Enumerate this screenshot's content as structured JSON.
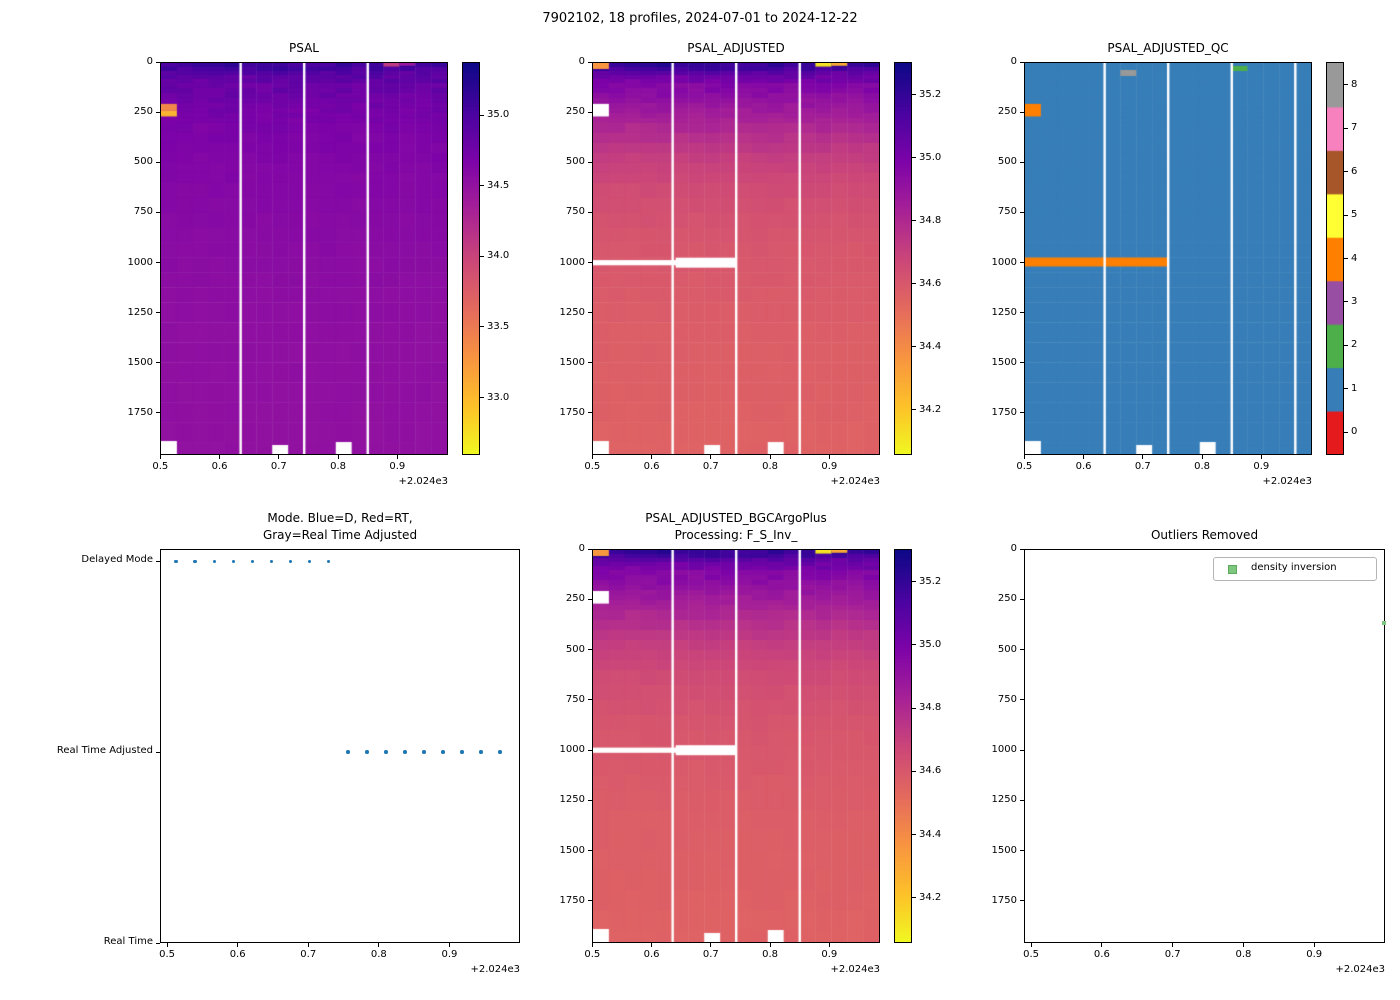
{
  "figure": {
    "suptitle": "7902102, 18 profiles, 2024-07-01 to 2024-12-22",
    "background": "#ffffff"
  },
  "colors": {
    "spine": "#000000",
    "text": "#000000",
    "qc_palette": [
      "#e41a1c",
      "#377eb8",
      "#4daf4a",
      "#984ea3",
      "#ff7f00",
      "#ffff33",
      "#a65628",
      "#f781bf",
      "#999999"
    ],
    "plasma_stops": [
      [
        0,
        "#0d0887"
      ],
      [
        0.13,
        "#4b03a1"
      ],
      [
        0.25,
        "#7d03a8"
      ],
      [
        0.38,
        "#a82296"
      ],
      [
        0.5,
        "#cb4679"
      ],
      [
        0.63,
        "#e56b5d"
      ],
      [
        0.75,
        "#f89441"
      ],
      [
        0.88,
        "#fdc328"
      ],
      [
        1,
        "#f0f921"
      ]
    ]
  },
  "profiles_x": [
    0.513,
    0.54,
    0.567,
    0.594,
    0.621,
    0.648,
    0.675,
    0.702,
    0.729,
    0.756,
    0.783,
    0.81,
    0.837,
    0.864,
    0.891,
    0.918,
    0.945,
    0.972
  ],
  "profile_halfwidth": 0.0135,
  "chart_data": [
    {
      "id": "psal",
      "type": "heatmap",
      "title": "PSAL",
      "xlim": [
        0.4995,
        0.9855
      ],
      "xticks": [
        0.5,
        0.6,
        0.7,
        0.8,
        0.9
      ],
      "x_offset_label": "+2.024e3",
      "depth_max": 1960,
      "yticks": [
        0,
        250,
        500,
        750,
        1000,
        1250,
        1500,
        1750
      ],
      "vmin": 32.6,
      "vmax": 35.37,
      "colorbar_ticks": [
        "33.0",
        "33.5",
        "34.0",
        "34.5",
        "35.0"
      ],
      "profile_depths": [
        0,
        25,
        60,
        120,
        250,
        400,
        600,
        900,
        1300,
        1960
      ],
      "profile_values": [
        35.12,
        35.02,
        34.9,
        34.8,
        34.72,
        34.66,
        34.62,
        34.58,
        34.54,
        34.52
      ],
      "anomalies": [
        {
          "profile": 0,
          "d0": 205,
          "d1": 240,
          "value": 33.4
        },
        {
          "profile": 0,
          "d0": 240,
          "d1": 268,
          "value": 33.05
        },
        {
          "profile": 14,
          "d0": 0,
          "d1": 18,
          "value": 34.1
        },
        {
          "profile": 15,
          "d0": 0,
          "d1": 14,
          "value": 34.45
        }
      ],
      "column_gaps_after": [
        4,
        8,
        12
      ],
      "missing_bottom": [
        {
          "profile": 0,
          "from": 1895
        },
        {
          "profile": 7,
          "from": 1915
        },
        {
          "profile": 11,
          "from": 1900
        }
      ],
      "masked_rows": []
    },
    {
      "id": "psal_adjusted",
      "type": "heatmap",
      "title": "PSAL_ADJUSTED",
      "xlim": [
        0.4995,
        0.9855
      ],
      "xticks": [
        0.5,
        0.6,
        0.7,
        0.8,
        0.9
      ],
      "x_offset_label": "+2.024e3",
      "depth_max": 1960,
      "yticks": [
        0,
        250,
        500,
        750,
        1000,
        1250,
        1500,
        1750
      ],
      "vmin": 34.06,
      "vmax": 35.3,
      "colorbar_ticks": [
        "34.2",
        "34.4",
        "34.6",
        "34.8",
        "35.0",
        "35.2"
      ],
      "profile_depths": [
        0,
        25,
        60,
        120,
        200,
        300,
        450,
        650,
        900,
        1300,
        1960
      ],
      "profile_values": [
        35.22,
        35.16,
        35.05,
        34.96,
        34.9,
        34.82,
        34.72,
        34.65,
        34.61,
        34.58,
        34.56
      ],
      "anomalies": [
        {
          "profile": 0,
          "d0": 0,
          "d1": 30,
          "value": 34.36
        },
        {
          "profile": 0,
          "d0": 205,
          "d1": 268,
          "value": null
        },
        {
          "profile": 14,
          "d0": 0,
          "d1": 18,
          "value": 34.12
        },
        {
          "profile": 15,
          "d0": 0,
          "d1": 14,
          "value": 34.3
        }
      ],
      "column_gaps_after": [
        4,
        8,
        12
      ],
      "missing_bottom": [
        {
          "profile": 0,
          "from": 1895
        },
        {
          "profile": 7,
          "from": 1915
        },
        {
          "profile": 11,
          "from": 1900
        }
      ],
      "masked_rows": [
        {
          "x0": 0.4995,
          "x1": 0.7425,
          "d0": 988,
          "d1": 1014
        },
        {
          "x0": 0.64,
          "x1": 0.7425,
          "d0": 976,
          "d1": 1026
        }
      ]
    },
    {
      "id": "psal_adjusted_qc",
      "type": "heatmap_discrete",
      "title": "PSAL_ADJUSTED_QC",
      "xlim": [
        0.4995,
        0.9855
      ],
      "xticks": [
        0.5,
        0.6,
        0.7,
        0.8,
        0.9
      ],
      "x_offset_label": "+2.024e3",
      "depth_max": 1960,
      "yticks": [
        0,
        250,
        500,
        750,
        1000,
        1250,
        1500,
        1750
      ],
      "base_value": 1,
      "levels": [
        0,
        1,
        2,
        3,
        4,
        5,
        6,
        7,
        8
      ],
      "anomalies": [
        {
          "profile": 0,
          "d0": 205,
          "d1": 268,
          "value": 4
        },
        {
          "profile": 6,
          "d0": 35,
          "d1": 65,
          "value": 8
        },
        {
          "profile": 13,
          "d0": 15,
          "d1": 40,
          "value": 2
        }
      ],
      "masked_rows": [
        {
          "x0": 0.4995,
          "x1": 0.7425,
          "d0": 975,
          "d1": 1020,
          "value": 4
        }
      ],
      "column_gaps_after": [
        4,
        8,
        12,
        16
      ],
      "missing_bottom": [
        {
          "profile": 0,
          "from": 1895
        },
        {
          "profile": 7,
          "from": 1915
        },
        {
          "profile": 11,
          "from": 1900
        }
      ]
    },
    {
      "id": "mode",
      "type": "scatter_mode",
      "title_lines": [
        "Mode. Blue=D, Red=RT,",
        "Gray=Real Time Adjusted"
      ],
      "xlim": [
        0.49,
        1.0
      ],
      "xticks": [
        0.5,
        0.6,
        0.7,
        0.8,
        0.9
      ],
      "x_offset_label": "+2.024e3",
      "categories": [
        "Delayed Mode",
        "Real Time Adjusted",
        "Real Time"
      ],
      "category_positions": [
        0.0315,
        0.5157,
        1.0
      ],
      "delayed_x": [
        0.513,
        0.54,
        0.567,
        0.594,
        0.621,
        0.648,
        0.675,
        0.702,
        0.729
      ],
      "adjusted_x": [
        0.756,
        0.783,
        0.81,
        0.837,
        0.864,
        0.891,
        0.918,
        0.945,
        0.972
      ],
      "dot_color_delayed": "#1f77b4",
      "dot_color_adjusted": "#1f77b4"
    },
    {
      "id": "psal_adjusted_bgc",
      "type": "heatmap",
      "title_lines": [
        "PSAL_ADJUSTED_BGCArgoPlus",
        "Processing: F_S_Inv_"
      ],
      "xlim": [
        0.4995,
        0.9855
      ],
      "xticks": [
        0.5,
        0.6,
        0.7,
        0.8,
        0.9
      ],
      "x_offset_label": "+2.024e3",
      "depth_max": 1960,
      "yticks": [
        0,
        250,
        500,
        750,
        1000,
        1250,
        1500,
        1750
      ],
      "vmin": 34.06,
      "vmax": 35.3,
      "colorbar_ticks": [
        "34.2",
        "34.4",
        "34.6",
        "34.8",
        "35.0",
        "35.2"
      ],
      "profile_depths": [
        0,
        25,
        60,
        120,
        200,
        300,
        450,
        650,
        900,
        1300,
        1960
      ],
      "profile_values": [
        35.22,
        35.16,
        35.05,
        34.96,
        34.9,
        34.82,
        34.72,
        34.65,
        34.61,
        34.58,
        34.56
      ],
      "anomalies": [
        {
          "profile": 0,
          "d0": 0,
          "d1": 30,
          "value": 34.36
        },
        {
          "profile": 0,
          "d0": 205,
          "d1": 268,
          "value": null
        },
        {
          "profile": 14,
          "d0": 0,
          "d1": 18,
          "value": 34.12
        },
        {
          "profile": 15,
          "d0": 0,
          "d1": 14,
          "value": 34.3
        }
      ],
      "column_gaps_after": [
        4,
        8,
        12
      ],
      "missing_bottom": [
        {
          "profile": 0,
          "from": 1895
        },
        {
          "profile": 7,
          "from": 1915
        },
        {
          "profile": 11,
          "from": 1900
        }
      ],
      "masked_rows": [
        {
          "x0": 0.4995,
          "x1": 0.7425,
          "d0": 988,
          "d1": 1014
        },
        {
          "x0": 0.64,
          "x1": 0.7425,
          "d0": 976,
          "d1": 1026
        }
      ]
    },
    {
      "id": "outliers",
      "type": "empty_depth",
      "title": "Outliers Removed",
      "xlim": [
        0.49,
        1.0
      ],
      "xticks": [
        0.5,
        0.6,
        0.7,
        0.8,
        0.9
      ],
      "x_offset_label": "+2.024e3",
      "depth_max": 1960,
      "yticks": [
        0,
        250,
        500,
        750,
        1000,
        1250,
        1500,
        1750
      ],
      "legend": {
        "label": "density inversion",
        "marker_color": "#7ec77e"
      },
      "points": [
        {
          "x": 0.998,
          "depth": 370
        }
      ]
    }
  ]
}
